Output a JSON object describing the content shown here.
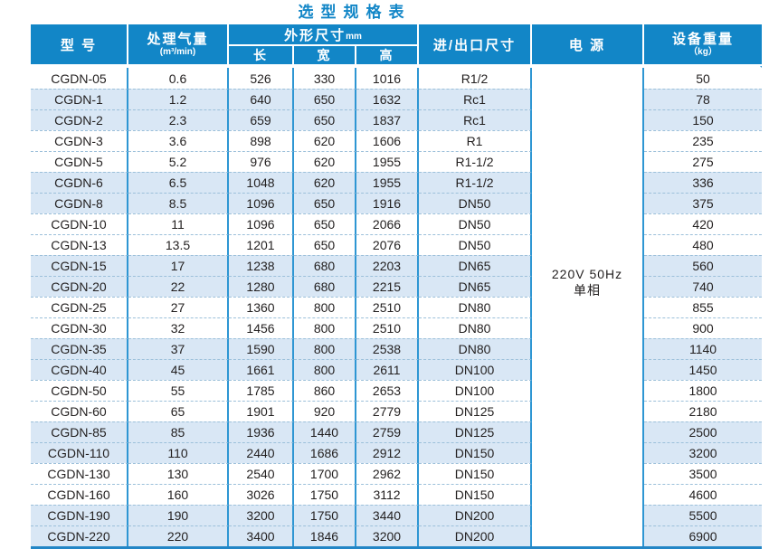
{
  "title": "选型规格表",
  "table": {
    "header": {
      "model": "型 号",
      "capacity": "处理气量",
      "capacity_unit": "(m³/min)",
      "dimensions": "外形尺寸",
      "dimensions_unit": "mm",
      "length": "长",
      "width": "宽",
      "height": "高",
      "inlet_outlet": "进/出口尺寸",
      "power": "电 源",
      "weight": "设备重量",
      "weight_unit": "（kg）"
    },
    "power": {
      "line1": "220V 50Hz",
      "line2": "单相"
    },
    "rows": [
      {
        "model": "CGDN-05",
        "capacity": "0.6",
        "length": "526",
        "width": "330",
        "height": "1016",
        "inlet_outlet": "R1/2",
        "weight": "50"
      },
      {
        "model": "CGDN-1",
        "capacity": "1.2",
        "length": "640",
        "width": "650",
        "height": "1632",
        "inlet_outlet": "Rc1",
        "weight": "78"
      },
      {
        "model": "CGDN-2",
        "capacity": "2.3",
        "length": "659",
        "width": "650",
        "height": "1837",
        "inlet_outlet": "Rc1",
        "weight": "150"
      },
      {
        "model": "CGDN-3",
        "capacity": "3.6",
        "length": "898",
        "width": "620",
        "height": "1606",
        "inlet_outlet": "R1",
        "weight": "235"
      },
      {
        "model": "CGDN-5",
        "capacity": "5.2",
        "length": "976",
        "width": "620",
        "height": "1955",
        "inlet_outlet": "R1-1/2",
        "weight": "275"
      },
      {
        "model": "CGDN-6",
        "capacity": "6.5",
        "length": "1048",
        "width": "620",
        "height": "1955",
        "inlet_outlet": "R1-1/2",
        "weight": "336"
      },
      {
        "model": "CGDN-8",
        "capacity": "8.5",
        "length": "1096",
        "width": "650",
        "height": "1916",
        "inlet_outlet": "DN50",
        "weight": "375"
      },
      {
        "model": "CGDN-10",
        "capacity": "11",
        "length": "1096",
        "width": "650",
        "height": "2066",
        "inlet_outlet": "DN50",
        "weight": "420"
      },
      {
        "model": "CGDN-13",
        "capacity": "13.5",
        "length": "1201",
        "width": "650",
        "height": "2076",
        "inlet_outlet": "DN50",
        "weight": "480"
      },
      {
        "model": "CGDN-15",
        "capacity": "17",
        "length": "1238",
        "width": "680",
        "height": "2203",
        "inlet_outlet": "DN65",
        "weight": "560"
      },
      {
        "model": "CGDN-20",
        "capacity": "22",
        "length": "1280",
        "width": "680",
        "height": "2215",
        "inlet_outlet": "DN65",
        "weight": "740"
      },
      {
        "model": "CGDN-25",
        "capacity": "27",
        "length": "1360",
        "width": "800",
        "height": "2510",
        "inlet_outlet": "DN80",
        "weight": "855"
      },
      {
        "model": "CGDN-30",
        "capacity": "32",
        "length": "1456",
        "width": "800",
        "height": "2510",
        "inlet_outlet": "DN80",
        "weight": "900"
      },
      {
        "model": "CGDN-35",
        "capacity": "37",
        "length": "1590",
        "width": "800",
        "height": "2538",
        "inlet_outlet": "DN80",
        "weight": "1140"
      },
      {
        "model": "CGDN-40",
        "capacity": "45",
        "length": "1661",
        "width": "800",
        "height": "2611",
        "inlet_outlet": "DN100",
        "weight": "1450"
      },
      {
        "model": "CGDN-50",
        "capacity": "55",
        "length": "1785",
        "width": "860",
        "height": "2653",
        "inlet_outlet": "DN100",
        "weight": "1800"
      },
      {
        "model": "CGDN-60",
        "capacity": "65",
        "length": "1901",
        "width": "920",
        "height": "2779",
        "inlet_outlet": "DN125",
        "weight": "2180"
      },
      {
        "model": "CGDN-85",
        "capacity": "85",
        "length": "1936",
        "width": "1440",
        "height": "2759",
        "inlet_outlet": "DN125",
        "weight": "2500"
      },
      {
        "model": "CGDN-110",
        "capacity": "110",
        "length": "2440",
        "width": "1686",
        "height": "2912",
        "inlet_outlet": "DN150",
        "weight": "3200"
      },
      {
        "model": "CGDN-130",
        "capacity": "130",
        "length": "2540",
        "width": "1700",
        "height": "2962",
        "inlet_outlet": "DN150",
        "weight": "3500"
      },
      {
        "model": "CGDN-160",
        "capacity": "160",
        "length": "3026",
        "width": "1750",
        "height": "3112",
        "inlet_outlet": "DN150",
        "weight": "4600"
      },
      {
        "model": "CGDN-190",
        "capacity": "190",
        "length": "3200",
        "width": "1750",
        "height": "3440",
        "inlet_outlet": "DN200",
        "weight": "5500"
      },
      {
        "model": "CGDN-220",
        "capacity": "220",
        "length": "3400",
        "width": "1846",
        "height": "3200",
        "inlet_outlet": "DN200",
        "weight": "6900"
      }
    ]
  },
  "colors": {
    "header_bg": "#1286c7",
    "title": "#1286c7",
    "row_shaded": "#d9e7f5",
    "grid_line": "#2e96d3",
    "dashed_line": "#9cc0da",
    "bottom_border": "#2386c6",
    "text": "#221f1f"
  }
}
